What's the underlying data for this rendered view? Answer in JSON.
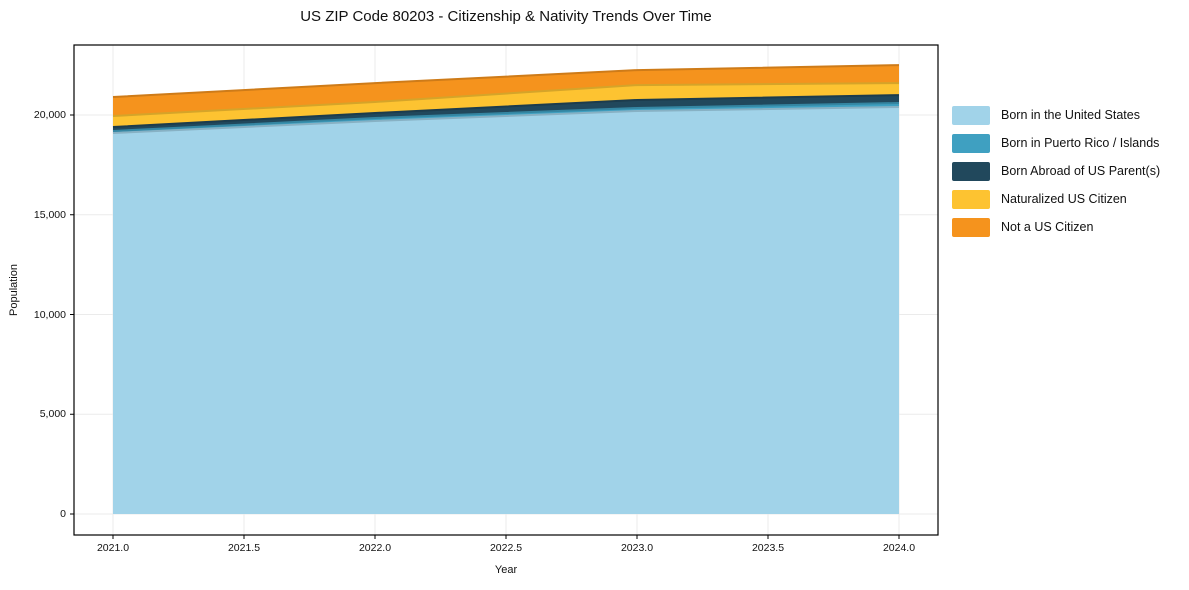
{
  "title": "US ZIP Code 80203 - Citizenship & Nativity Trends Over Time",
  "chart_data": {
    "type": "area",
    "stacked": true,
    "title": "US ZIP Code 80203 - Citizenship & Nativity Trends Over Time",
    "xlabel": "Year",
    "ylabel": "Population",
    "x": [
      2021,
      2022,
      2023,
      2024
    ],
    "x_tick_values": [
      2021.0,
      2021.5,
      2022.0,
      2022.5,
      2023.0,
      2023.5,
      2024.0
    ],
    "x_tick_labels": [
      "2021.0",
      "2021.5",
      "2022.0",
      "2022.5",
      "2023.0",
      "2023.5",
      "2024.0"
    ],
    "y_tick_values": [
      0,
      5000,
      10000,
      15000,
      20000
    ],
    "y_tick_labels": [
      "0",
      "5,000",
      "10,000",
      "15,000",
      "20,000"
    ],
    "xlim": [
      2020.85,
      2024.15
    ],
    "ylim": [
      -1050,
      23550
    ],
    "grid": true,
    "legend_position": "right-outside",
    "background_color": "#ffffff",
    "grid_color": "#ebebeb",
    "series": [
      {
        "name": "Born in the United States",
        "color": "#A1D3E9",
        "values": [
          19100,
          19700,
          20200,
          20400
        ]
      },
      {
        "name": "Born in Puerto Rico / Islands",
        "color": "#3FA0C1",
        "values": [
          100,
          150,
          150,
          200
        ]
      },
      {
        "name": "Born Abroad of US Parent(s)",
        "color": "#21485C",
        "values": [
          200,
          250,
          400,
          400
        ]
      },
      {
        "name": "Naturalized US Citizen",
        "color": "#FDC331",
        "values": [
          550,
          550,
          750,
          600
        ]
      },
      {
        "name": "Not a US Citizen",
        "color": "#F5931D",
        "values": [
          950,
          950,
          750,
          900
        ]
      }
    ],
    "stack_totals": [
      20900,
      21600,
      22250,
      22500
    ]
  }
}
